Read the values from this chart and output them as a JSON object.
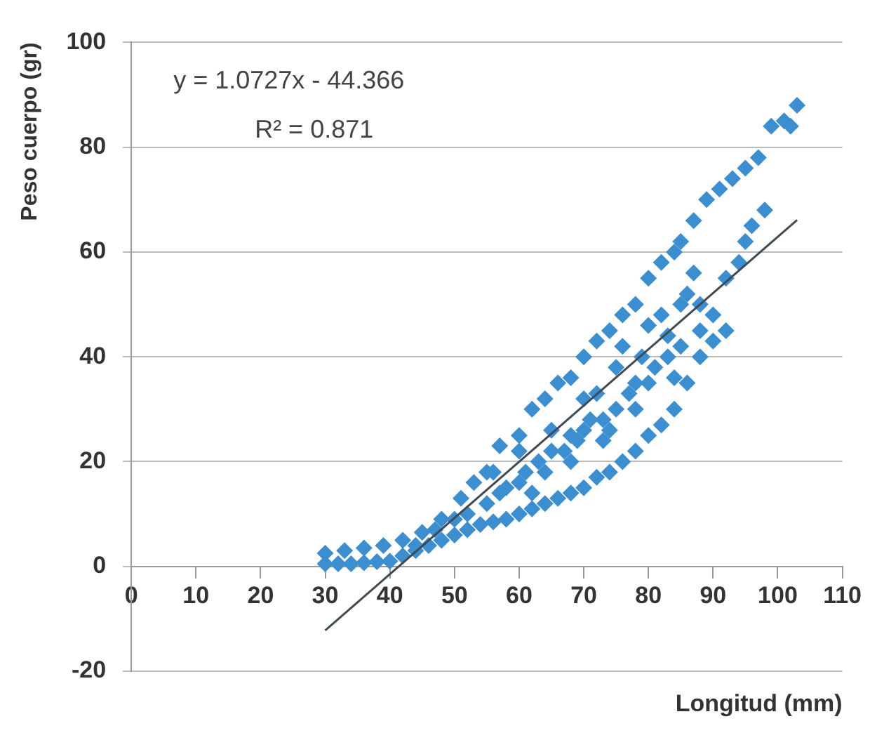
{
  "chart_data": {
    "type": "scatter",
    "xlabel": "Longitud (mm)",
    "ylabel": "Peso cuerpo (gr)",
    "annotations": [
      "y = 1.0727x - 44.366",
      "R² = 0.871"
    ],
    "xlim": [
      0,
      110
    ],
    "xticks": [
      0,
      10,
      20,
      30,
      40,
      50,
      60,
      70,
      80,
      90,
      100,
      110
    ],
    "ylim": [
      -20,
      100
    ],
    "yticks": [
      -20,
      0,
      20,
      40,
      60,
      80,
      100
    ],
    "grid": "y",
    "legend": false,
    "series": [
      {
        "color": "#3b8ed0",
        "marker": "diamond",
        "x": [
          30,
          32,
          34,
          36,
          38,
          40,
          42,
          44,
          46,
          48,
          50,
          52,
          54,
          56,
          58,
          60,
          62,
          64,
          66,
          68,
          70,
          72,
          74,
          76,
          78,
          80,
          82,
          84,
          86,
          88,
          90,
          92,
          30,
          33,
          36,
          39,
          42,
          45,
          48,
          51,
          53,
          55,
          57,
          60,
          62,
          64,
          66,
          68,
          70,
          72,
          74,
          76,
          78,
          80,
          82,
          84,
          85,
          87,
          89,
          91,
          93,
          95,
          97,
          99,
          101,
          103,
          50,
          55,
          60,
          65,
          70,
          75,
          80,
          85,
          58,
          63,
          68,
          73,
          78,
          83,
          88,
          92,
          94,
          96,
          90,
          86,
          82,
          65,
          70,
          75,
          80,
          88,
          95,
          98,
          102,
          44,
          47,
          52,
          57,
          61,
          67,
          71,
          73,
          77,
          79,
          81,
          83,
          85,
          87,
          62,
          68,
          74,
          78,
          84,
          56,
          60,
          64,
          69,
          72,
          76
        ],
        "values": [
          0.5,
          0.5,
          0.5,
          0.7,
          0.9,
          1,
          2,
          3,
          4,
          5,
          6,
          7,
          8,
          8.5,
          9,
          10,
          11,
          12,
          13,
          14,
          15,
          17,
          18,
          20,
          22,
          25,
          27,
          30,
          35,
          40,
          43,
          45,
          2.5,
          3,
          3.5,
          4,
          5,
          6.5,
          9,
          13,
          16,
          18,
          23,
          25,
          30,
          32,
          35,
          36,
          40,
          43,
          45,
          48,
          50,
          55,
          58,
          60,
          62,
          66,
          70,
          72,
          74,
          76,
          78,
          84,
          85,
          88,
          9,
          12,
          16,
          22,
          26,
          30,
          35,
          42,
          15,
          20,
          25,
          28,
          35,
          40,
          45,
          55,
          58,
          65,
          48,
          52,
          48,
          26,
          32,
          38,
          46,
          50,
          62,
          68,
          84,
          4,
          7,
          10,
          14,
          18,
          22,
          28,
          24,
          33,
          40,
          38,
          44,
          50,
          56,
          14,
          20,
          26,
          30,
          36,
          18,
          22,
          18,
          24,
          33,
          42
        ]
      },
      {
        "type": "line",
        "color": "#404a55",
        "marker": "none",
        "x": [
          30,
          103
        ],
        "values": [
          -12.2,
          66.1
        ]
      }
    ]
  }
}
